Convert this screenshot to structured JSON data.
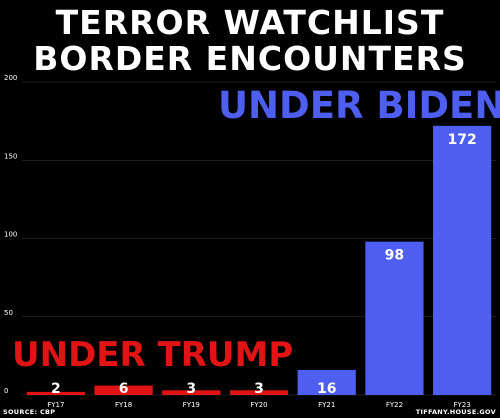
{
  "title_lines": [
    "TERROR WATCHLIST",
    "BORDER ENCOUNTERS"
  ],
  "annotations": {
    "biden": "UNDER BIDEN",
    "trump": "UNDER TRUMP"
  },
  "footer": {
    "source": "SOURCE: CBP",
    "credit": "TIFFANY.HOUSE.GOV"
  },
  "colors": {
    "background": "#000000",
    "trump_bar": "#e01414",
    "biden_bar": "#4d5ef0",
    "gridline": "#3a3a3a",
    "text": "#ffffff"
  },
  "chart_data": {
    "type": "bar",
    "categories": [
      "FY17",
      "FY18",
      "FY19",
      "FY20",
      "FY21",
      "FY22",
      "FY23"
    ],
    "values": [
      2,
      6,
      3,
      3,
      16,
      98,
      172
    ],
    "bar_groups": [
      "trump",
      "trump",
      "trump",
      "trump",
      "biden",
      "biden",
      "biden"
    ],
    "ylim": [
      0,
      200
    ],
    "yticks": [
      0,
      50,
      100,
      150,
      200
    ],
    "grid": true,
    "xlabel": "",
    "ylabel": ""
  }
}
